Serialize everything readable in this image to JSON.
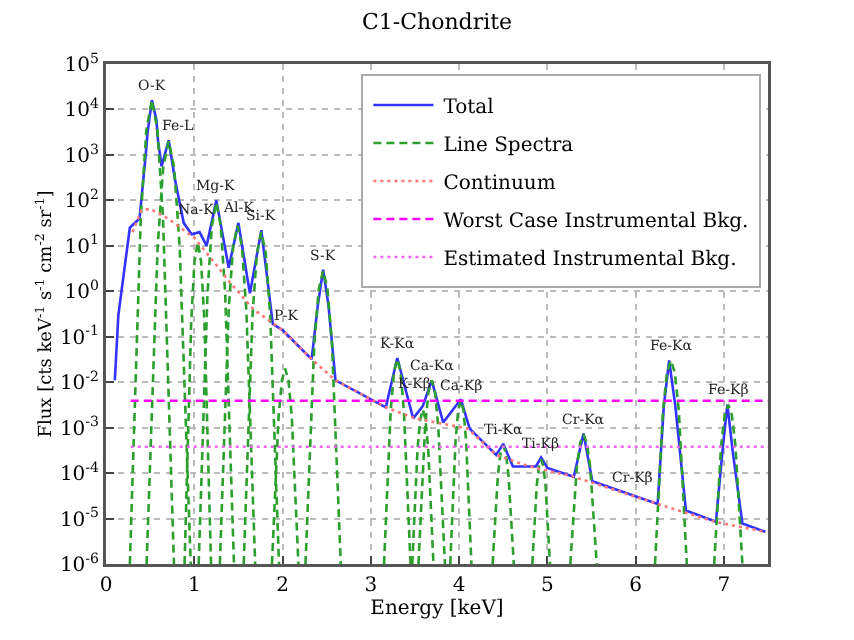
{
  "chart_data": {
    "type": "line",
    "title": "C1-Chondrite",
    "xlabel": "Energy [keV]",
    "ylabel": "Flux [cts keV$^{-1}$ s$^{-1}$ cm$^{-2}$ sr$^{-1}$]",
    "xlim": [
      0,
      7.5
    ],
    "xticks": [
      0,
      1,
      2,
      3,
      4,
      5,
      6,
      7
    ],
    "ylim": [
      1e-06,
      100000
    ],
    "yticks": [
      {
        "value": 1e-06,
        "label": "10$^{-6}$"
      },
      {
        "value": 1e-05,
        "label": "10$^{-5}$"
      },
      {
        "value": 0.0001,
        "label": "10$^{-4}$"
      },
      {
        "value": 0.001,
        "label": "10$^{-3}$"
      },
      {
        "value": 0.01,
        "label": "10$^{-2}$"
      },
      {
        "value": 0.1,
        "label": "10$^{-1}$"
      },
      {
        "value": 1,
        "label": "10$^{0}$"
      },
      {
        "value": 10,
        "label": "10$^{1}$"
      },
      {
        "value": 100,
        "label": "10$^{2}$"
      },
      {
        "value": 1000,
        "label": "10$^{3}$"
      },
      {
        "value": 10000,
        "label": "10$^{4}$"
      },
      {
        "value": 100000,
        "label": "10$^{5}$"
      }
    ],
    "log": "y",
    "grid": true,
    "legend": "top right",
    "series": [
      {
        "name": "Total",
        "color": "#3333ff",
        "line_style": "solid",
        "x": [
          0.1,
          0.14,
          0.27,
          0.38,
          0.45,
          0.47,
          0.52,
          0.57,
          0.59,
          0.63,
          0.71,
          0.78,
          0.88,
          0.97,
          1.06,
          1.14,
          1.25,
          1.39,
          1.5,
          1.63,
          1.76,
          1.89,
          2.0,
          2.33,
          2.4,
          2.46,
          2.52,
          2.6,
          3.17,
          3.3,
          3.48,
          3.59,
          3.69,
          3.82,
          4.02,
          4.12,
          4.42,
          4.5,
          4.61,
          4.87,
          4.93,
          5.0,
          5.3,
          5.41,
          5.51,
          6.25,
          6.32,
          6.38,
          6.45,
          6.57,
          6.91,
          6.99,
          7.04,
          7.1,
          7.21,
          7.47
        ],
        "values": [
          0.011,
          0.3,
          25,
          40,
          1000,
          3000,
          16000,
          6000,
          2000,
          560,
          2100,
          300,
          32,
          18,
          20,
          10,
          100,
          3.3,
          32,
          0.9,
          22,
          0.19,
          0.14,
          0.032,
          0.5,
          3,
          0.5,
          0.011,
          0.0028,
          0.034,
          0.0016,
          0.003,
          0.011,
          0.0013,
          0.0042,
          0.00095,
          0.00025,
          0.00044,
          0.00014,
          0.00014,
          0.00022,
          0.00013,
          8.3e-05,
          0.00074,
          6.6e-05,
          2.1e-05,
          0.003,
          0.03,
          0.003,
          1.5e-05,
          8.5e-06,
          0.0004,
          0.0032,
          0.0003,
          7.8e-06,
          5.1e-06
        ]
      },
      {
        "name": "Line Spectra",
        "color": "#2ca02c",
        "line_style": "dashed",
        "x": [
          0.27,
          0.395,
          0.4575,
          0.52,
          0.5825,
          0.645,
          0.77,
          null,
          0.46,
          0.585,
          0.6475,
          0.71,
          0.7725,
          0.835,
          0.96,
          null,
          0.89,
          0.965,
          1.0025,
          1.04,
          1.0775,
          1.115,
          1.19,
          null,
          1.05,
          1.15,
          1.2,
          1.25,
          1.3,
          1.35,
          1.45,
          null,
          1.29,
          1.39,
          1.44,
          1.49,
          1.54,
          1.59,
          1.69,
          null,
          1.56,
          1.66,
          1.71,
          1.76,
          1.81,
          1.86,
          1.96,
          null,
          1.88,
          1.955,
          1.9925,
          2.03,
          2.0675,
          2.105,
          2.18,
          null,
          2.26,
          2.36,
          2.41,
          2.46,
          2.51,
          2.56,
          2.66,
          null,
          3.15,
          3.225,
          3.2625,
          3.3,
          3.3375,
          3.375,
          3.45,
          null,
          3.47,
          3.53,
          3.56,
          3.59,
          3.62,
          3.65,
          3.71,
          null,
          3.54,
          3.615,
          3.6525,
          3.69,
          3.7275,
          3.765,
          3.84,
          null,
          3.9,
          3.96,
          3.99,
          4.02,
          4.05,
          4.08,
          4.14,
          null,
          4.38,
          4.44,
          4.47,
          4.5,
          4.53,
          4.56,
          4.62,
          null,
          4.83,
          4.88,
          4.905,
          4.93,
          4.955,
          4.98,
          5.03,
          null,
          5.26,
          5.335,
          5.3725,
          5.41,
          5.4475,
          5.485,
          5.56,
          null,
          6.22,
          6.31,
          6.355,
          6.4,
          6.445,
          6.49,
          6.58,
          null,
          6.89,
          6.97,
          7.01,
          7.05,
          7.09,
          7.13,
          7.21
        ],
        "values": [
          1e-06,
          45,
          3600,
          16000,
          3600,
          45,
          1e-06,
          null,
          1e-06,
          9.4,
          520,
          2000,
          520,
          9.4,
          1e-06,
          null,
          1e-06,
          0.21,
          4.5,
          12,
          4.5,
          0.21,
          1e-06,
          null,
          1e-06,
          0.91,
          28,
          90,
          28,
          0.91,
          1e-06,
          null,
          1e-06,
          0.39,
          9.6,
          28,
          9.6,
          0.39,
          1e-06,
          null,
          1e-06,
          0.3,
          6.9,
          20,
          6.9,
          0.3,
          1e-06,
          null,
          1e-06,
          0.0017,
          0.011,
          0.02,
          0.011,
          0.0017,
          1e-06,
          null,
          1e-06,
          0.069,
          1.1,
          2.8,
          1.1,
          0.069,
          1e-06,
          null,
          1e-06,
          0.0023,
          0.017,
          0.032,
          0.017,
          0.0023,
          1e-06,
          null,
          1e-06,
          0.00035,
          0.0015,
          0.0025,
          0.0015,
          0.00035,
          1e-06,
          null,
          1e-06,
          0.001,
          0.006,
          0.011,
          0.006,
          0.001,
          1e-06,
          null,
          1e-06,
          0.0005,
          0.0024,
          0.004,
          0.0024,
          0.0005,
          1e-06,
          null,
          1e-06,
          8.9e-05,
          0.00028,
          0.0004,
          0.00028,
          8.9e-05,
          1e-06,
          null,
          1e-06,
          5.3e-05,
          0.00014,
          0.0002,
          0.00014,
          5.3e-05,
          1e-06,
          null,
          1e-06,
          0.00014,
          0.00047,
          0.0007,
          0.00047,
          0.00014,
          1e-06,
          null,
          1e-06,
          0.0023,
          0.016,
          0.03,
          0.016,
          0.0023,
          1e-06,
          null,
          1e-06,
          0.00042,
          0.0019,
          0.0032,
          0.0019,
          0.00042,
          1e-06
        ]
      },
      {
        "name": "Continuum",
        "color": "#ff7777",
        "line_style": "dotted",
        "x": [
          0.3,
          0.4,
          0.5,
          0.7,
          1.0,
          1.2,
          1.4,
          1.67,
          2.0,
          2.33,
          2.6,
          3.17,
          3.5,
          4.1,
          4.42,
          4.8,
          5.3,
          6.25,
          6.9,
          7.47
        ],
        "values": [
          20,
          60,
          65,
          40,
          15,
          5,
          1.6,
          0.4,
          0.14,
          0.032,
          0.011,
          0.0028,
          0.0016,
          0.00095,
          0.00025,
          0.00014,
          8.3e-05,
          2.1e-05,
          8.5e-06,
          5.1e-06
        ]
      },
      {
        "name": "Worst Case Instrumental Bkg.",
        "color": "#ff00ff",
        "line_style": "dashed",
        "x": [
          0.28,
          7.5
        ],
        "values": [
          0.0039,
          0.0039
        ]
      },
      {
        "name": "Estimated Instrumental Bkg.",
        "color": "#ee66ee",
        "line_style": "dotted",
        "x": [
          0.28,
          7.5
        ],
        "values": [
          0.00038,
          0.00038
        ]
      }
    ],
    "annotations": [
      {
        "text": "O-K",
        "x": 0.52,
        "y": 16000
      },
      {
        "text": "Fe-L",
        "x": 0.82,
        "y": 2100
      },
      {
        "text": "Na-K",
        "x": 1.02,
        "y": 30
      },
      {
        "text": "Mg-K",
        "x": 1.25,
        "y": 100
      },
      {
        "text": "Al-K",
        "x": 1.5,
        "y": 32
      },
      {
        "text": "Si-K",
        "x": 1.76,
        "y": 22
      },
      {
        "text": "P-K",
        "x": 2.05,
        "y": 0.14
      },
      {
        "text": "S-K",
        "x": 2.46,
        "y": 3
      },
      {
        "text": "K-Kα",
        "x": 3.3,
        "y": 0.034
      },
      {
        "text": "K-Kβ",
        "x": 3.5,
        "y": 0.0045
      },
      {
        "text": "Ca-Kα",
        "x": 3.69,
        "y": 0.011
      },
      {
        "text": "Ca-Kβ",
        "x": 4.02,
        "y": 0.0042
      },
      {
        "text": "Ti-Kα",
        "x": 4.5,
        "y": 0.00044
      },
      {
        "text": "Ti-Kβ",
        "x": 4.93,
        "y": 0.00022
      },
      {
        "text": "Cr-Kα",
        "x": 5.41,
        "y": 0.00074
      },
      {
        "text": "Cr-Kβ",
        "x": 5.95,
        "y": 4e-05
      },
      {
        "text": "Fe-Kα",
        "x": 6.4,
        "y": 0.03
      },
      {
        "text": "Fe-Kβ",
        "x": 7.05,
        "y": 0.0032
      }
    ]
  }
}
